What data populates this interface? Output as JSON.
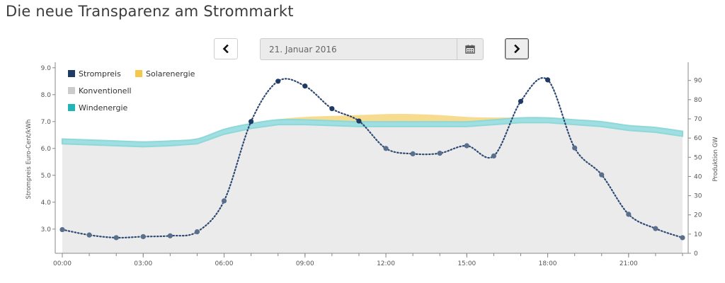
{
  "page": {
    "title": "Die neue Transparenz am Strommarkt"
  },
  "controls": {
    "date_value": "21. Januar 2016",
    "prev_icon": "chevron-left-icon",
    "next_icon": "chevron-right-icon",
    "calendar_icon": "calendar-icon"
  },
  "chart_data": {
    "type": "area",
    "x_tick_labels": [
      "00:00",
      "03:00",
      "06:00",
      "09:00",
      "12:00",
      "15:00",
      "18:00",
      "21:00"
    ],
    "x_range": [
      0,
      23
    ],
    "ylabel_left": "Strompreis Euro-Cent/kWh",
    "ylabel_right": "Produktion GW",
    "yleft_ticks": [
      "3.0",
      "4.0",
      "5.0",
      "6.0",
      "7.0",
      "8.0",
      "9.0"
    ],
    "yleft_range": [
      2.1,
      9.1
    ],
    "yright_ticks": [
      "0",
      "10",
      "20",
      "30",
      "40",
      "50",
      "60",
      "70",
      "80",
      "90"
    ],
    "yright_range": [
      0,
      98
    ],
    "legend": [
      {
        "name": "Strompreis",
        "color": "#1f3b63"
      },
      {
        "name": "Solarenergie",
        "color": "#f5c84c"
      },
      {
        "name": "Konventionell",
        "color": "#cccccc"
      },
      {
        "name": "Windenergie",
        "color": "#22b5b8"
      }
    ],
    "legend_position": "top-left",
    "hours": [
      0,
      1,
      2,
      3,
      4,
      5,
      6,
      7,
      8,
      9,
      10,
      11,
      12,
      13,
      14,
      15,
      16,
      17,
      18,
      19,
      20,
      21,
      22,
      23
    ],
    "series": [
      {
        "name": "Konventionell",
        "axis": "right",
        "color": "#ebebeb",
        "values": [
          57,
          56.5,
          56,
          55.5,
          56,
          57,
          62,
          65,
          67,
          67,
          66.5,
          66,
          66,
          66,
          66,
          66,
          67,
          68,
          68,
          67,
          66,
          64,
          63,
          61
        ]
      },
      {
        "name": "Windenergie",
        "axis": "right",
        "color": "#9fdfe1",
        "values": [
          2.5,
          2.5,
          2.5,
          2.5,
          2.5,
          2.5,
          2.5,
          2.5,
          2.5,
          2.5,
          2.5,
          2.5,
          2.5,
          2.5,
          2.5,
          2.5,
          2.5,
          2.5,
          2.5,
          2.5,
          2.5,
          2.5,
          2.5,
          2.5
        ]
      },
      {
        "name": "Solarenergie",
        "axis": "right",
        "color": "#f7dc8f",
        "values": [
          0,
          0,
          0,
          0,
          0,
          0,
          0,
          0,
          0.3,
          1.5,
          2.5,
          3.5,
          4,
          4,
          3.5,
          2.5,
          1.2,
          0.2,
          0,
          0,
          0,
          0,
          0,
          0
        ]
      },
      {
        "name": "Strompreis",
        "axis": "left",
        "color": "#1f3b63",
        "values": [
          2.98,
          2.78,
          2.68,
          2.72,
          2.75,
          2.9,
          4.05,
          7.0,
          8.5,
          8.32,
          7.48,
          7.02,
          6.0,
          5.8,
          5.82,
          6.1,
          5.72,
          7.75,
          8.55,
          6.02,
          5.02,
          3.55,
          3.02,
          2.68
        ]
      }
    ]
  }
}
